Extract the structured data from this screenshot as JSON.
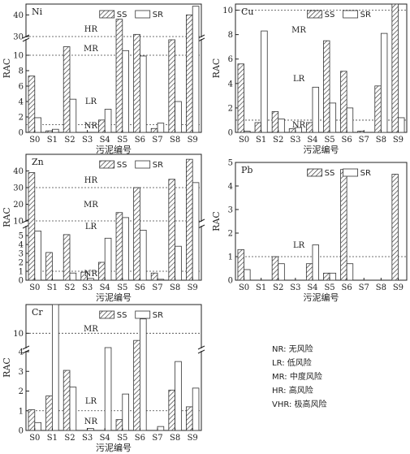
{
  "chart_data": [
    {
      "type": "bar",
      "element": "Ni",
      "ylabel": "RAC",
      "xlabel": "污泥编号",
      "categories": [
        "S0",
        "S1",
        "S2",
        "S3",
        "S4",
        "S5",
        "S6",
        "S7",
        "S8",
        "S9"
      ],
      "y_axis": {
        "lower_range": [
          0,
          12
        ],
        "lower_ticks": [
          0,
          2,
          4,
          6,
          8,
          10
        ],
        "upper_range": [
          30,
          45
        ],
        "upper_ticks": [
          30,
          40
        ],
        "axis_break": true
      },
      "series": [
        {
          "name": "SS",
          "pattern": "hatch",
          "values": [
            7.3,
            0.2,
            11.1,
            0.0,
            1.6,
            38.0,
            31.0,
            0.5,
            13.5,
            40.0
          ]
        },
        {
          "name": "SR",
          "pattern": "empty",
          "values": [
            1.9,
            0.4,
            4.3,
            0.0,
            3.0,
            10.6,
            9.9,
            1.2,
            4.0,
            44.0
          ]
        }
      ],
      "thresholds": [
        {
          "value": 1,
          "label": "NR"
        },
        {
          "value": 10,
          "label": ""
        },
        {
          "value": 30,
          "label": ""
        }
      ],
      "zone_labels": [
        "HR",
        "MR",
        "LR",
        "NR"
      ]
    },
    {
      "type": "bar",
      "element": "Cu",
      "ylabel": "RAC",
      "xlabel": "污泥编号",
      "categories": [
        "S0",
        "S1",
        "S2",
        "S3",
        "S4",
        "S5",
        "S6",
        "S7",
        "S8",
        "S9"
      ],
      "y_axis": {
        "range": [
          0,
          10.5
        ],
        "ticks": [
          0,
          2,
          4,
          6,
          8,
          10
        ]
      },
      "series": [
        {
          "name": "SS",
          "pattern": "hatch",
          "values": [
            5.6,
            0.8,
            1.7,
            0.3,
            0.8,
            7.5,
            5.0,
            0.1,
            3.8,
            10.5
          ]
        },
        {
          "name": "SR",
          "pattern": "empty",
          "values": [
            0.1,
            8.3,
            1.1,
            0.4,
            3.7,
            2.4,
            2.0,
            0.0,
            8.1,
            1.2
          ]
        }
      ],
      "thresholds": [
        {
          "value": 1,
          "label": "NR"
        },
        {
          "value": 10,
          "label": "MR"
        }
      ],
      "zone_labels": [
        "MR",
        "LR",
        "NR"
      ]
    },
    {
      "type": "bar",
      "element": "Zn",
      "ylabel": "RAC",
      "xlabel": "污泥编号",
      "categories": [
        "S0",
        "S1",
        "S2",
        "S3",
        "S4",
        "S5",
        "S6",
        "S7",
        "S8",
        "S9"
      ],
      "y_axis": {
        "lower_range": [
          0,
          6
        ],
        "lower_ticks": [
          0,
          1,
          2,
          3,
          4,
          5
        ],
        "upper_range": [
          10,
          50
        ],
        "upper_ticks": [
          10,
          20,
          30,
          40
        ],
        "axis_break": true
      },
      "series": [
        {
          "name": "SS",
          "pattern": "hatch",
          "values": [
            39,
            3.1,
            5.1,
            0.9,
            2.0,
            15,
            30,
            0.8,
            35,
            47
          ]
        },
        {
          "name": "SR",
          "pattern": "empty",
          "values": [
            5.5,
            0.0,
            0.8,
            0.2,
            4.7,
            12,
            5.6,
            0.1,
            3.8,
            33
          ]
        }
      ],
      "thresholds": [
        {
          "value": 1,
          "label": "NR"
        },
        {
          "value": 10,
          "label": "LR"
        },
        {
          "value": 30,
          "label": "HR"
        }
      ],
      "zone_labels": [
        "HR",
        "MR",
        "LR",
        "NR"
      ]
    },
    {
      "type": "bar",
      "element": "Pb",
      "ylabel": "RAC",
      "xlabel": "污泥编号",
      "categories": [
        "S0",
        "S1",
        "S2",
        "S3",
        "S4",
        "S5",
        "S6",
        "S7",
        "S8",
        "S9"
      ],
      "y_axis": {
        "range": [
          0,
          5
        ],
        "ticks": [
          0,
          1,
          2,
          3,
          4,
          5
        ]
      },
      "series": [
        {
          "name": "SS",
          "pattern": "hatch",
          "values": [
            1.3,
            0.0,
            1.0,
            0.0,
            0.7,
            0.3,
            4.7,
            0.0,
            0.0,
            4.5
          ]
        },
        {
          "name": "SR",
          "pattern": "empty",
          "values": [
            0.45,
            0.0,
            0.7,
            0.0,
            1.5,
            0.3,
            0.7,
            0.0,
            0.0,
            0.0
          ]
        }
      ],
      "thresholds": [
        {
          "value": 1,
          "label": "LR"
        }
      ],
      "zone_labels": [
        "LR"
      ]
    },
    {
      "type": "bar",
      "element": "Cr",
      "ylabel": "RAC",
      "xlabel": "污泥编号",
      "categories": [
        "S0",
        "S1",
        "S2",
        "S3",
        "S4",
        "S5",
        "S6",
        "S7",
        "S8",
        "S9"
      ],
      "y_axis": {
        "lower_range": [
          0,
          4
        ],
        "lower_ticks": [
          0,
          1,
          2,
          3,
          4
        ],
        "upper_range": [
          9,
          12
        ],
        "upper_ticks": [
          10
        ],
        "axis_break": true
      },
      "series": [
        {
          "name": "SS",
          "pattern": "hatch",
          "values": [
            1.05,
            1.75,
            3.05,
            0.0,
            0.0,
            0.55,
            9.5,
            0.0,
            2.05,
            1.2
          ]
        },
        {
          "name": "SR",
          "pattern": "empty",
          "values": [
            0.4,
            13.0,
            2.2,
            0.1,
            9.0,
            1.85,
            11.0,
            0.2,
            3.5,
            2.15
          ]
        }
      ],
      "thresholds": [
        {
          "value": 1,
          "label": "NR"
        },
        {
          "value": 10,
          "label": "MR"
        }
      ],
      "zone_labels": [
        "MR",
        "LR",
        "NR"
      ]
    }
  ],
  "legend_key": [
    {
      "code": "NR",
      "text": "NR: 无风险"
    },
    {
      "code": "LR",
      "text": "LR: 低风险"
    },
    {
      "code": "MR",
      "text": "MR: 中度风险"
    },
    {
      "code": "HR",
      "text": "HR: 高风险"
    },
    {
      "code": "VHR",
      "text": "VHR: 极高风险"
    }
  ],
  "series_labels": {
    "ss": "SS",
    "sr": "SR"
  }
}
